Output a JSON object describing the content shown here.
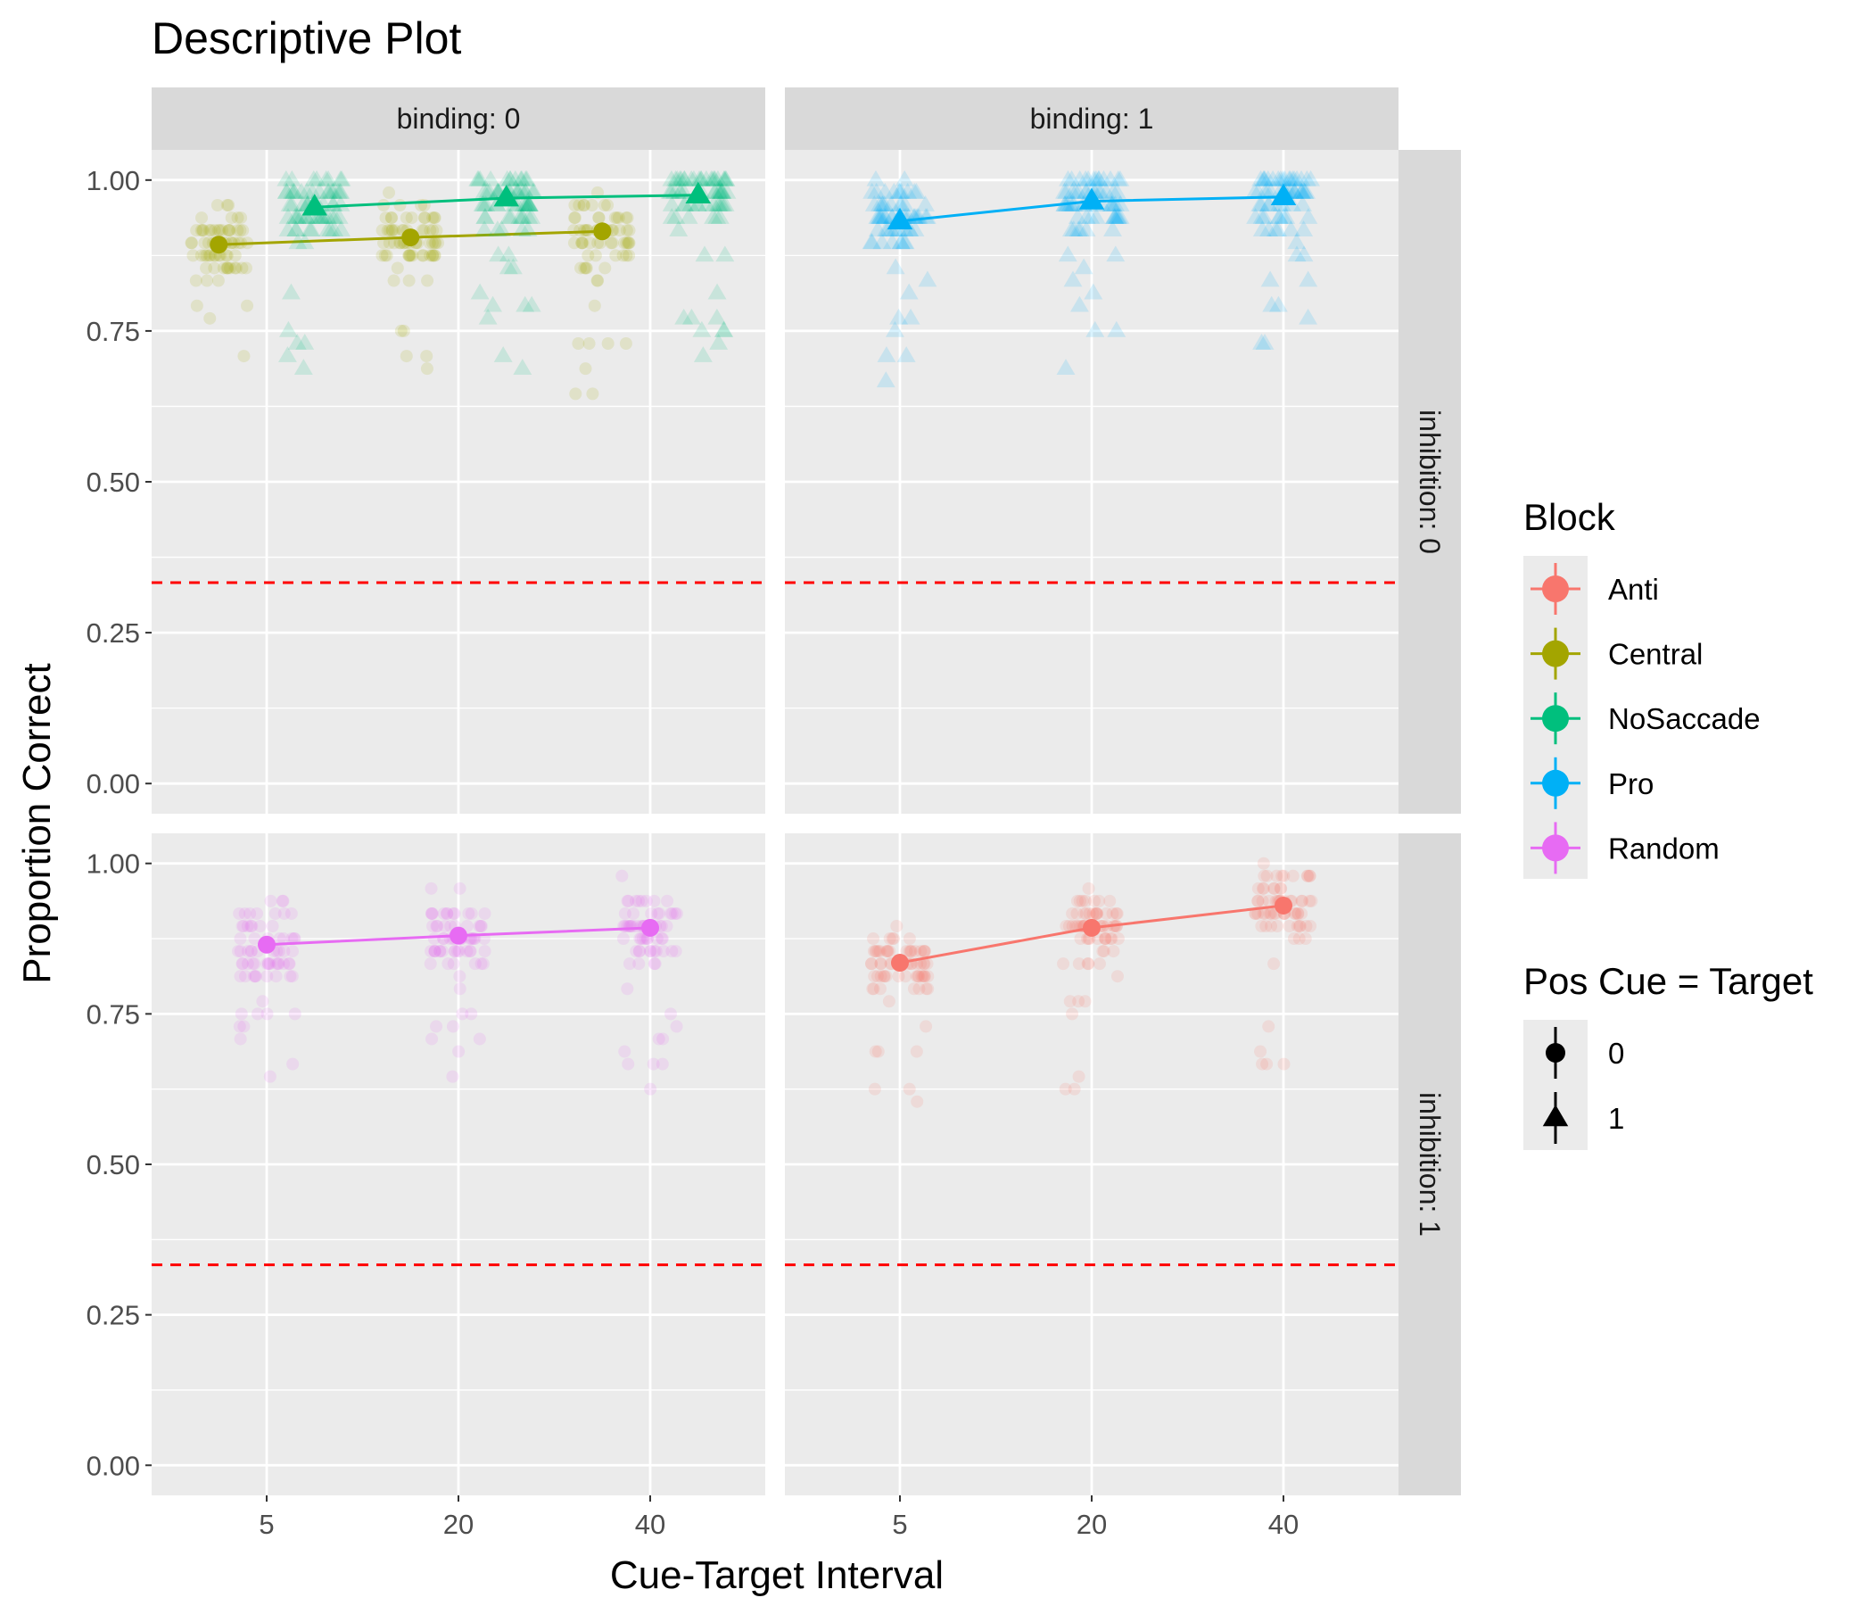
{
  "chart_data": {
    "type": "scatter",
    "title": "Descriptive Plot",
    "xlabel": "Cue-Target Interval",
    "ylabel": "Proportion Correct",
    "x_categories": [
      "5",
      "20",
      "40"
    ],
    "ylim": [
      -0.05,
      1.05
    ],
    "yticks": [
      0.0,
      0.25,
      0.5,
      0.75,
      1.0
    ],
    "ytick_labels": [
      "0.00",
      "0.25",
      "0.50",
      "0.75",
      "1.00"
    ],
    "chance_line": 0.333,
    "grid": true,
    "legend_position": "right",
    "col_facets": [
      "binding: 0",
      "binding: 1"
    ],
    "row_facets": [
      "inhibition: 0",
      "inhibition: 1"
    ],
    "legends": [
      {
        "title": "Block",
        "entries": [
          {
            "label": "Anti",
            "color": "#F8766D"
          },
          {
            "label": "Central",
            "color": "#A3A500"
          },
          {
            "label": "NoSaccade",
            "color": "#00BF7D"
          },
          {
            "label": "Pro",
            "color": "#00B0F6"
          },
          {
            "label": "Random",
            "color": "#E76BF3"
          }
        ]
      },
      {
        "title": "Pos Cue = Target",
        "entries": [
          {
            "label": "0",
            "shape": "circle"
          },
          {
            "label": "1",
            "shape": "triangle"
          }
        ]
      }
    ],
    "series": [
      {
        "block": "Central",
        "pos_cue_target": "0",
        "binding": "0",
        "inhibition": "0",
        "x": [
          "5",
          "20",
          "40"
        ],
        "y": [
          0.893,
          0.905,
          0.915
        ],
        "dodge": -0.25
      },
      {
        "block": "NoSaccade",
        "pos_cue_target": "1",
        "binding": "0",
        "inhibition": "0",
        "x": [
          "5",
          "20",
          "40"
        ],
        "y": [
          0.955,
          0.97,
          0.975
        ],
        "dodge": 0.25
      },
      {
        "block": "Pro",
        "pos_cue_target": "1",
        "binding": "1",
        "inhibition": "0",
        "x": [
          "5",
          "20",
          "40"
        ],
        "y": [
          0.932,
          0.965,
          0.972
        ],
        "dodge": 0
      },
      {
        "block": "Random",
        "pos_cue_target": "0",
        "binding": "0",
        "inhibition": "1",
        "x": [
          "5",
          "20",
          "40"
        ],
        "y": [
          0.865,
          0.88,
          0.893
        ],
        "dodge": 0
      },
      {
        "block": "Anti",
        "pos_cue_target": "0",
        "binding": "1",
        "inhibition": "1",
        "x": [
          "5",
          "20",
          "40"
        ],
        "y": [
          0.835,
          0.893,
          0.93
        ],
        "dodge": 0
      }
    ]
  }
}
